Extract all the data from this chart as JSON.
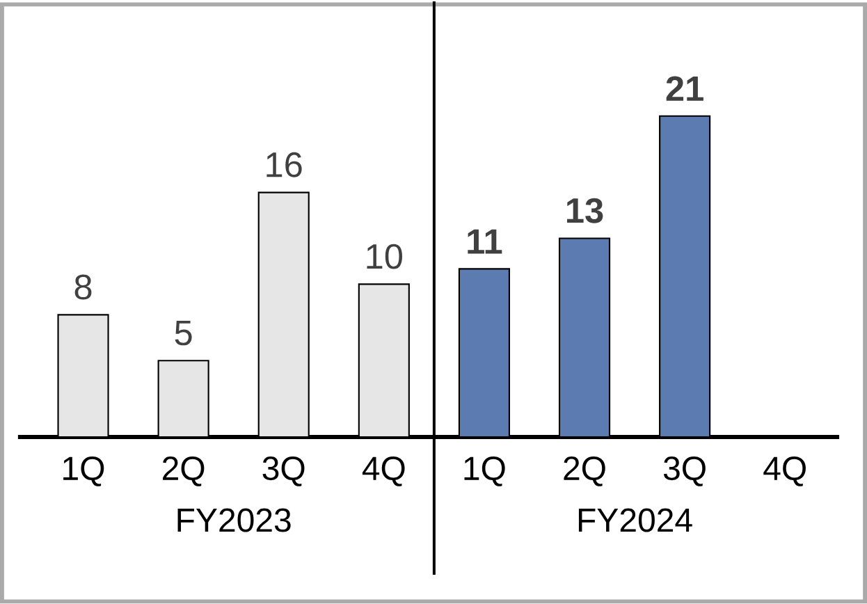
{
  "chart_data": {
    "type": "bar",
    "categories": [
      "1Q",
      "2Q",
      "3Q",
      "4Q",
      "1Q",
      "2Q",
      "3Q",
      "4Q"
    ],
    "values": [
      8,
      5,
      16,
      10,
      11,
      13,
      21,
      null
    ],
    "colors": [
      "#e6e6e6",
      "#e6e6e6",
      "#e6e6e6",
      "#e6e6e6",
      "#5b7bb1",
      "#5b7bb1",
      "#5b7bb1",
      "#5b7bb1"
    ],
    "value_labels": [
      "8",
      "5",
      "16",
      "10",
      "**11**",
      "**13**",
      "**21**",
      null
    ],
    "annotations": [
      "FY2023",
      "FY2024"
    ],
    "ylim": [
      0,
      28.5
    ]
  }
}
